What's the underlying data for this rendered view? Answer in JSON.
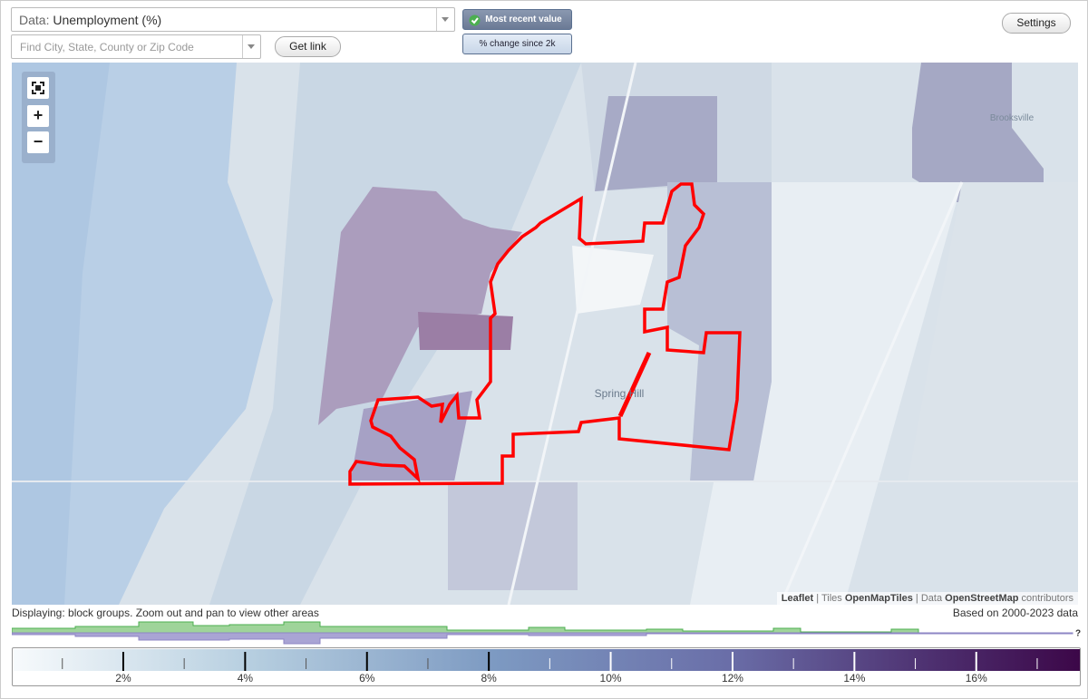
{
  "toolbar": {
    "data_label": "Data:",
    "data_value": "Unemployment (%)",
    "search_placeholder": "Find City, State, County or Zip Code",
    "get_link": "Get link",
    "most_recent": "Most recent value",
    "percent_change": "% change since 2k",
    "settings": "Settings"
  },
  "map": {
    "places": [
      "Brooksville",
      "Spring Hill"
    ],
    "zoom_in": "+",
    "zoom_out": "−",
    "attribution": {
      "leaflet": "Leaflet",
      "sep": "|",
      "tiles_label": "Tiles",
      "tiles": "OpenMapTiles",
      "data_label": "Data",
      "data": "OpenStreetMap",
      "suffix": "contributors"
    }
  },
  "footer": {
    "displaying": "Displaying: block groups. Zoom out and pan to view other areas",
    "based_on": "Based on 2000-2023 data",
    "help": "?"
  },
  "legend": {
    "range": [
      0.2,
      17.7
    ],
    "ticks": [
      {
        "value": 2,
        "label": "2%"
      },
      {
        "value": 4,
        "label": "4%"
      },
      {
        "value": 6,
        "label": "6%"
      },
      {
        "value": 8,
        "label": "8%"
      },
      {
        "value": 10,
        "label": "10%"
      },
      {
        "value": 12,
        "label": "12%"
      },
      {
        "value": 14,
        "label": "14%"
      },
      {
        "value": 16,
        "label": "16%"
      }
    ],
    "minor_ticks": [
      1,
      3,
      5,
      7,
      9,
      11,
      13,
      15,
      17
    ]
  }
}
